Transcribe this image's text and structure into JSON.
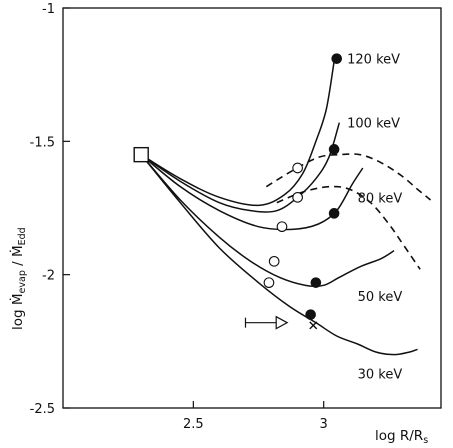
{
  "chart_data": {
    "type": "line",
    "xlim": [
      2.0,
      3.45
    ],
    "ylim": [
      -2.5,
      -1.0
    ],
    "xticks": [
      {
        "v": 2.5,
        "label": "2.5"
      },
      {
        "v": 3.0,
        "label": "3"
      }
    ],
    "yticks": [
      {
        "v": -1.0,
        "label": "-1"
      },
      {
        "v": -1.5,
        "label": "-1.5"
      },
      {
        "v": -2.0,
        "label": "-2"
      },
      {
        "v": -2.5,
        "label": "-2.5"
      }
    ],
    "xlabel": {
      "main": "log R/R",
      "sub": "s"
    },
    "ylabel": {
      "prefix": "log Ṁ",
      "sub1": "evap",
      "mid": " / Ṁ",
      "sub2": "Edd"
    },
    "start_point": {
      "x": 2.3,
      "y": -1.55
    },
    "series": [
      {
        "name": "120 keV",
        "points": [
          [
            2.3,
            -1.55
          ],
          [
            2.45,
            -1.64
          ],
          [
            2.6,
            -1.71
          ],
          [
            2.75,
            -1.74
          ],
          [
            2.85,
            -1.7
          ],
          [
            2.92,
            -1.62
          ],
          [
            2.97,
            -1.5
          ],
          [
            3.01,
            -1.38
          ],
          [
            3.04,
            -1.2
          ]
        ],
        "open_marker": [
          2.9,
          -1.6
        ],
        "filled_marker": [
          3.05,
          -1.19
        ]
      },
      {
        "name": "100 keV",
        "points": [
          [
            2.3,
            -1.55
          ],
          [
            2.45,
            -1.65
          ],
          [
            2.6,
            -1.73
          ],
          [
            2.72,
            -1.76
          ],
          [
            2.82,
            -1.76
          ],
          [
            2.9,
            -1.71
          ],
          [
            2.97,
            -1.64
          ],
          [
            3.02,
            -1.56
          ],
          [
            3.06,
            -1.43
          ]
        ],
        "open_marker": [
          2.9,
          -1.71
        ],
        "filled_marker": [
          3.04,
          -1.53
        ]
      },
      {
        "name": "80 keV",
        "points": [
          [
            2.3,
            -1.55
          ],
          [
            2.45,
            -1.67
          ],
          [
            2.6,
            -1.76
          ],
          [
            2.75,
            -1.82
          ],
          [
            2.88,
            -1.83
          ],
          [
            2.98,
            -1.81
          ],
          [
            3.05,
            -1.76
          ],
          [
            3.11,
            -1.66
          ],
          [
            3.15,
            -1.6
          ]
        ],
        "open_marker": [
          2.84,
          -1.82
        ],
        "filled_marker": [
          3.04,
          -1.77
        ]
      },
      {
        "name": "50 keV",
        "points": [
          [
            2.3,
            -1.55
          ],
          [
            2.45,
            -1.72
          ],
          [
            2.6,
            -1.86
          ],
          [
            2.72,
            -1.95
          ],
          [
            2.83,
            -2.01
          ],
          [
            2.93,
            -2.04
          ],
          [
            3.0,
            -2.04
          ],
          [
            3.06,
            -2.01
          ],
          [
            3.14,
            -1.97
          ],
          [
            3.22,
            -1.94
          ],
          [
            3.27,
            -1.91
          ]
        ],
        "open_marker": [
          2.81,
          -1.95
        ],
        "filled_marker": [
          2.97,
          -2.03
        ]
      },
      {
        "name": "30 keV",
        "points": [
          [
            2.3,
            -1.55
          ],
          [
            2.45,
            -1.73
          ],
          [
            2.6,
            -1.9
          ],
          [
            2.75,
            -2.03
          ],
          [
            2.87,
            -2.12
          ],
          [
            2.97,
            -2.18
          ],
          [
            3.05,
            -2.23
          ],
          [
            3.13,
            -2.26
          ],
          [
            3.2,
            -2.29
          ],
          [
            3.27,
            -2.3
          ],
          [
            3.33,
            -2.29
          ],
          [
            3.36,
            -2.28
          ]
        ],
        "open_marker": [
          2.79,
          -2.03
        ],
        "filled_marker": [
          2.95,
          -2.15
        ]
      }
    ],
    "dashed_curves": [
      {
        "points": [
          [
            2.78,
            -1.67
          ],
          [
            2.88,
            -1.61
          ],
          [
            2.98,
            -1.56
          ],
          [
            3.06,
            -1.55
          ],
          [
            3.14,
            -1.55
          ],
          [
            3.22,
            -1.58
          ],
          [
            3.3,
            -1.63
          ],
          [
            3.36,
            -1.68
          ],
          [
            3.41,
            -1.72
          ]
        ]
      },
      {
        "points": [
          [
            2.82,
            -1.73
          ],
          [
            2.92,
            -1.69
          ],
          [
            3.02,
            -1.67
          ],
          [
            3.1,
            -1.68
          ],
          [
            3.18,
            -1.73
          ],
          [
            3.25,
            -1.81
          ],
          [
            3.3,
            -1.88
          ],
          [
            3.37,
            -1.98
          ]
        ]
      }
    ],
    "arrow_marker": {
      "x_start": 2.7,
      "x_end": 2.86,
      "y": -2.18
    },
    "x_marker": {
      "x": 2.96,
      "y": -2.19
    }
  }
}
